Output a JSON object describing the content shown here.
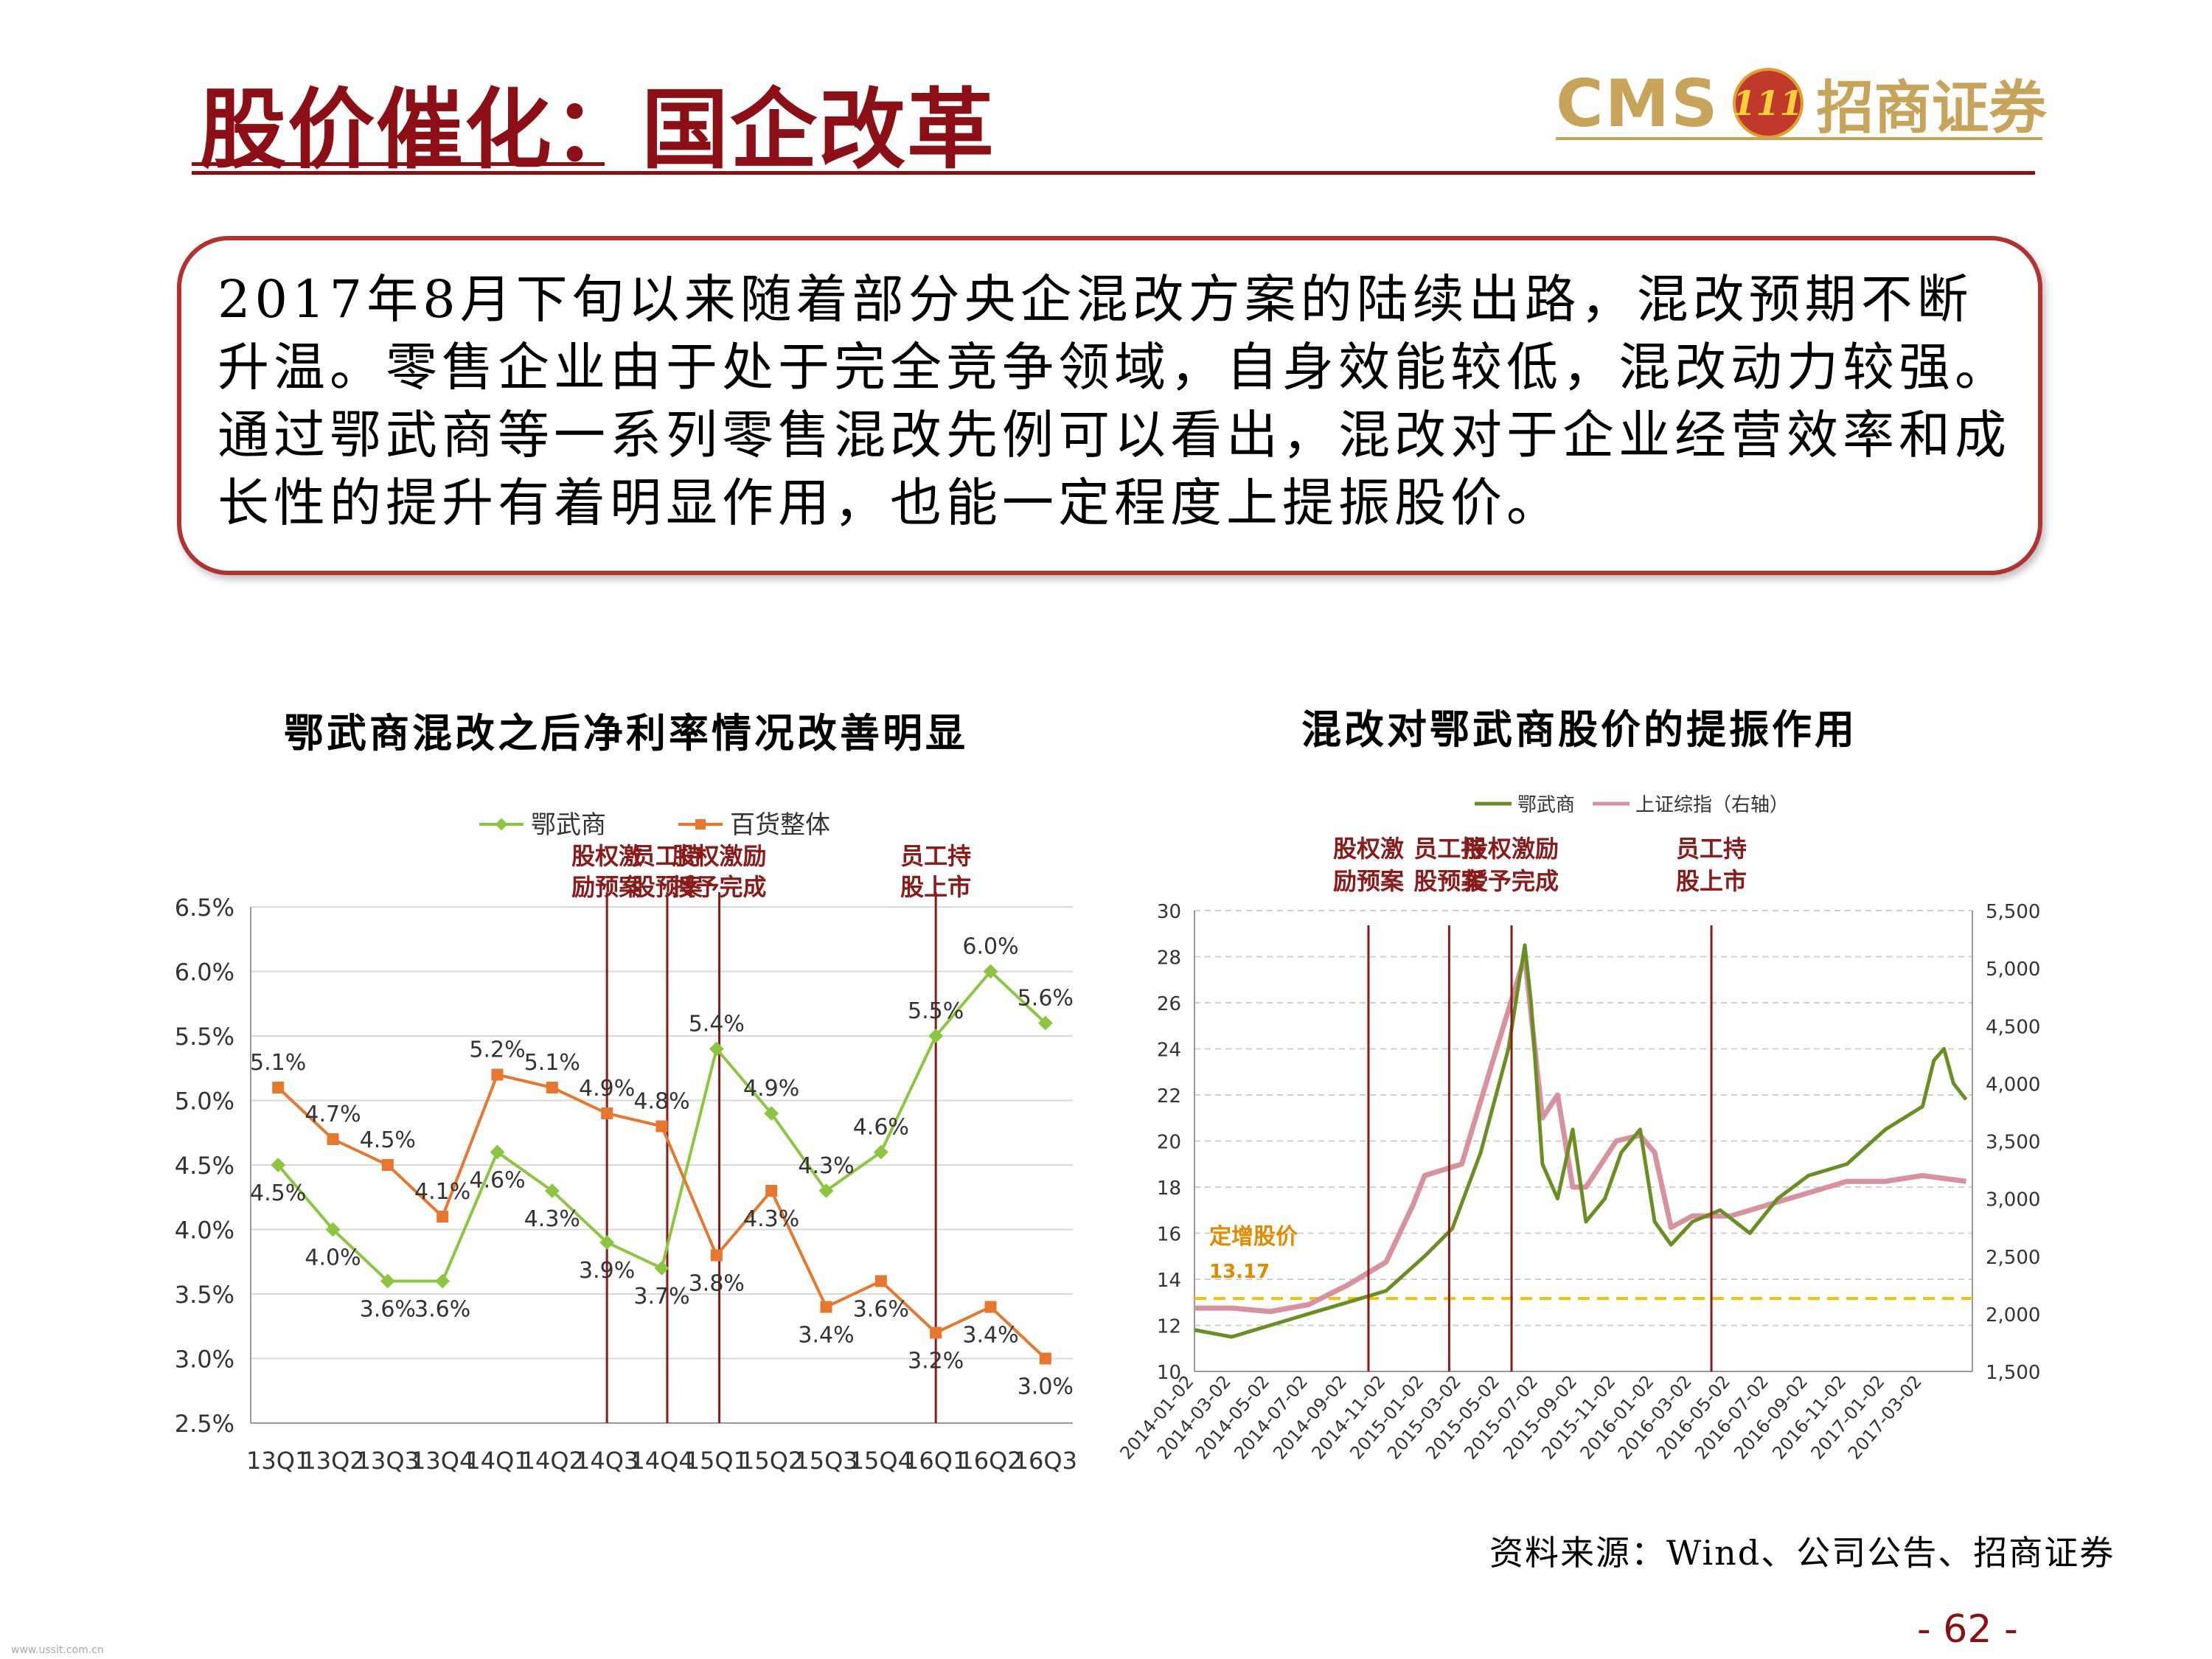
{
  "title": "股价催化：国企改革",
  "logo": {
    "en": "CMS",
    "mark": "111",
    "cn": "招商证券"
  },
  "callout": "2017年8月下旬以来随着部分央企混改方案的陆续出路，混改预期不断升温。零售企业由于处于完全竞争领域，自身效能较低，混改动力较强。通过鄂武商等一系列零售混改先例可以看出，混改对于企业经营效率和成长性的提升有着明显作用，也能一定程度上提振股价。",
  "source": "资料来源：Wind、公司公告、招商证券",
  "page_number": "- 62 -",
  "watermark": "www.ussit.com.cn",
  "colors": {
    "brand": "#8B0F14",
    "green": "#8CC63F",
    "orange": "#E8772E",
    "pink": "#D8919E",
    "olive": "#6B8E23",
    "marker": "#8B1A1A",
    "refline": "#F2C500"
  },
  "chart_data": [
    {
      "type": "line",
      "title": "鄂武商混改之后净利率情况改善明显",
      "categories": [
        "13Q1",
        "13Q2",
        "13Q3",
        "13Q4",
        "14Q1",
        "14Q2",
        "14Q3",
        "14Q4",
        "15Q1",
        "15Q2",
        "15Q3",
        "15Q4",
        "16Q1",
        "16Q2",
        "16Q3"
      ],
      "series": [
        {
          "name": "鄂武商",
          "values": [
            4.5,
            4.0,
            3.6,
            3.6,
            4.6,
            4.3,
            3.9,
            3.7,
            5.4,
            4.9,
            4.3,
            4.6,
            5.5,
            6.0,
            5.6
          ],
          "labels": [
            "4.5%",
            "4.0%",
            "3.6%",
            "3.6%",
            "4.6%",
            "4.3%",
            "3.9%",
            "3.7%",
            "5.4%",
            "4.9%",
            "4.3%",
            "4.6%",
            "5.5%",
            "6.0%",
            "5.6%"
          ]
        },
        {
          "name": "百货整体",
          "values": [
            5.1,
            4.7,
            4.5,
            4.1,
            5.2,
            5.1,
            4.9,
            4.8,
            3.8,
            4.3,
            3.4,
            3.6,
            3.2,
            3.4,
            3.0
          ],
          "labels": [
            "5.1%",
            "4.7%",
            "4.5%",
            "4.1%",
            "5.2%",
            "5.1%",
            "4.9%",
            "4.8%",
            "3.8%",
            "4.3%",
            "3.4%",
            "3.6%",
            "3.2%",
            "3.4%",
            "3.0%"
          ]
        }
      ],
      "ylim": [
        2.5,
        6.5
      ],
      "yticks": [
        "2.5%",
        "3.0%",
        "3.5%",
        "4.0%",
        "4.5%",
        "5.0%",
        "5.5%",
        "6.0%",
        "6.5%"
      ],
      "grid": true,
      "legend": "top",
      "events": [
        {
          "label": [
            "股权激",
            "励预案"
          ],
          "position": 6.5
        },
        {
          "label": [
            "员工持",
            "股预案"
          ],
          "position": 7.6
        },
        {
          "label": [
            "股权激励",
            "授予完成"
          ],
          "position": 8.55
        },
        {
          "label": [
            "员工持",
            "股上市"
          ],
          "position": 12.5
        }
      ]
    },
    {
      "type": "line",
      "title": "混改对鄂武商股价的提振作用",
      "x_ticks": [
        "2014-01-02",
        "2014-03-02",
        "2014-05-02",
        "2014-07-02",
        "2014-09-02",
        "2014-11-02",
        "2015-01-02",
        "2015-03-02",
        "2015-05-02",
        "2015-07-02",
        "2015-09-02",
        "2015-11-02",
        "2016-01-02",
        "2016-03-02",
        "2016-05-02",
        "2016-07-02",
        "2016-09-02",
        "2016-11-02",
        "2017-01-02",
        "2017-03-02"
      ],
      "y_left": {
        "lim": [
          10,
          30
        ],
        "ticks": [
          "10",
          "12",
          "14",
          "16",
          "18",
          "20",
          "22",
          "24",
          "26",
          "28",
          "30"
        ]
      },
      "y_right": {
        "lim": [
          1500,
          5500
        ],
        "ticks": [
          "1,500",
          "2,000",
          "2,500",
          "3,000",
          "3,500",
          "4,000",
          "4,500",
          "5,000",
          "5,500"
        ]
      },
      "legend": "top",
      "series": [
        {
          "name": "鄂武商",
          "axis": "left",
          "x": [
            "2014-01-02",
            "2014-03-02",
            "2014-05-02",
            "2014-07-02",
            "2014-09-02",
            "2014-11-02",
            "2015-01-02",
            "2015-02-15",
            "2015-04-01",
            "2015-05-15",
            "2015-06-10",
            "2015-06-20",
            "2015-07-08",
            "2015-08-01",
            "2015-08-25",
            "2015-09-15",
            "2015-10-15",
            "2015-11-10",
            "2015-12-10",
            "2016-01-02",
            "2016-01-28",
            "2016-03-02",
            "2016-04-15",
            "2016-06-01",
            "2016-07-15",
            "2016-09-02",
            "2016-11-02",
            "2017-01-02",
            "2017-03-02",
            "2017-03-20",
            "2017-04-05",
            "2017-04-20",
            "2017-05-10"
          ],
          "values": [
            11.8,
            11.5,
            12.0,
            12.5,
            13.0,
            13.5,
            15.0,
            16.2,
            19.5,
            24.0,
            28.5,
            26.0,
            19.0,
            17.5,
            20.5,
            16.5,
            17.5,
            19.5,
            20.5,
            16.5,
            15.5,
            16.5,
            17.0,
            16.0,
            17.5,
            18.5,
            19.0,
            20.5,
            21.5,
            23.5,
            24.0,
            22.5,
            21.8
          ]
        },
        {
          "name": "上证综指（右轴）",
          "axis": "right",
          "x": [
            "2014-01-02",
            "2014-03-02",
            "2014-05-02",
            "2014-07-02",
            "2014-09-02",
            "2014-11-02",
            "2014-12-15",
            "2015-01-02",
            "2015-03-02",
            "2015-04-15",
            "2015-06-10",
            "2015-06-20",
            "2015-07-08",
            "2015-08-01",
            "2015-08-25",
            "2015-09-15",
            "2015-11-02",
            "2015-12-10",
            "2016-01-02",
            "2016-01-28",
            "2016-03-02",
            "2016-05-02",
            "2016-07-02",
            "2016-09-02",
            "2016-11-02",
            "2017-01-02",
            "2017-03-02",
            "2017-05-10"
          ],
          "values": [
            2050,
            2050,
            2020,
            2080,
            2250,
            2450,
            2950,
            3200,
            3300,
            4100,
            5100,
            4600,
            3700,
            3900,
            3100,
            3100,
            3500,
            3550,
            3400,
            2750,
            2850,
            2850,
            2950,
            3050,
            3150,
            3150,
            3200,
            3150
          ]
        }
      ],
      "reference": {
        "label": "定增股价",
        "value_label": "13.17",
        "value": 13.17
      },
      "events": [
        {
          "label": [
            "股权激",
            "励预案"
          ],
          "date": "2014-10-05"
        },
        {
          "label": [
            "员工持",
            "股预案"
          ],
          "date": "2015-02-10"
        },
        {
          "label": [
            "股权激励",
            "授予完成"
          ],
          "date": "2015-05-20"
        },
        {
          "label": [
            "员工持",
            "股上市"
          ],
          "date": "2016-04-01"
        }
      ]
    }
  ]
}
